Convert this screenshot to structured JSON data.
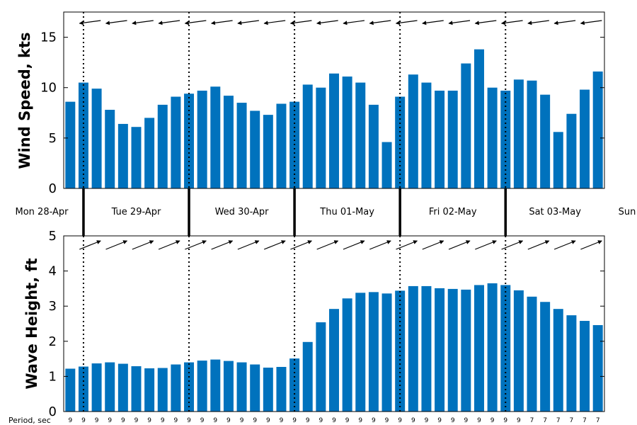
{
  "chart_data": [
    {
      "type": "bar",
      "ylabel": "Wind Speed, kts",
      "ylim": [
        0,
        17.5
      ],
      "yticks": [
        "0",
        "5",
        "10",
        "15"
      ],
      "grid": false,
      "bar_color": "#0072BD",
      "times": [
        "Mon 28-Apr 18:00",
        "Mon 28-Apr 21:00",
        "Tue 29-Apr 00:00",
        "Tue 29-Apr 03:00",
        "Tue 29-Apr 06:00",
        "Tue 29-Apr 09:00",
        "Tue 29-Apr 12:00",
        "Tue 29-Apr 15:00",
        "Tue 29-Apr 18:00",
        "Tue 29-Apr 21:00",
        "Wed 30-Apr 00:00",
        "Wed 30-Apr 03:00",
        "Wed 30-Apr 06:00",
        "Wed 30-Apr 09:00",
        "Wed 30-Apr 12:00",
        "Wed 30-Apr 15:00",
        "Wed 30-Apr 18:00",
        "Wed 30-Apr 21:00",
        "Thu 01-May 00:00",
        "Thu 01-May 03:00",
        "Thu 01-May 06:00",
        "Thu 01-May 09:00",
        "Thu 01-May 12:00",
        "Thu 01-May 15:00",
        "Thu 01-May 18:00",
        "Thu 01-May 21:00",
        "Fri 02-May 00:00",
        "Fri 02-May 03:00",
        "Fri 02-May 06:00",
        "Fri 02-May 09:00",
        "Fri 02-May 12:00",
        "Fri 02-May 15:00",
        "Fri 02-May 18:00",
        "Fri 02-May 21:00",
        "Sat 03-May 00:00",
        "Sat 03-May 03:00",
        "Sat 03-May 06:00",
        "Sat 03-May 09:00",
        "Sat 03-May 12:00",
        "Sat 03-May 15:00",
        "Sat 03-May 18:00"
      ],
      "values": [
        8.6,
        10.5,
        9.9,
        7.8,
        6.4,
        6.1,
        7.0,
        8.3,
        9.1,
        9.4,
        9.7,
        10.1,
        9.2,
        8.5,
        7.7,
        7.3,
        8.4,
        8.6,
        10.3,
        10.0,
        11.4,
        11.1,
        10.5,
        8.3,
        4.6,
        9.1,
        11.3,
        10.5,
        9.7,
        9.7,
        12.4,
        13.8,
        10.0,
        9.7,
        10.8,
        10.7,
        9.3,
        5.6,
        7.4,
        9.8,
        11.6
      ],
      "direction_arrows": "wind direction arrows above bars, pointing left (westward, slightly down-left)"
    },
    {
      "type": "bar",
      "ylabel": "Wave Height, ft",
      "ylim": [
        0,
        5
      ],
      "yticks": [
        "0",
        "1",
        "2",
        "3",
        "4",
        "5"
      ],
      "grid": false,
      "bar_color": "#0072BD",
      "times": [
        "Mon 28-Apr 18:00",
        "Mon 28-Apr 21:00",
        "Tue 29-Apr 00:00",
        "Tue 29-Apr 03:00",
        "Tue 29-Apr 06:00",
        "Tue 29-Apr 09:00",
        "Tue 29-Apr 12:00",
        "Tue 29-Apr 15:00",
        "Tue 29-Apr 18:00",
        "Tue 29-Apr 21:00",
        "Wed 30-Apr 00:00",
        "Wed 30-Apr 03:00",
        "Wed 30-Apr 06:00",
        "Wed 30-Apr 09:00",
        "Wed 30-Apr 12:00",
        "Wed 30-Apr 15:00",
        "Wed 30-Apr 18:00",
        "Wed 30-Apr 21:00",
        "Thu 01-May 00:00",
        "Thu 01-May 03:00",
        "Thu 01-May 06:00",
        "Thu 01-May 09:00",
        "Thu 01-May 12:00",
        "Thu 01-May 15:00",
        "Thu 01-May 18:00",
        "Thu 01-May 21:00",
        "Fri 02-May 00:00",
        "Fri 02-May 03:00",
        "Fri 02-May 06:00",
        "Fri 02-May 09:00",
        "Fri 02-May 12:00",
        "Fri 02-May 15:00",
        "Fri 02-May 18:00",
        "Fri 02-May 21:00",
        "Sat 03-May 00:00",
        "Sat 03-May 03:00",
        "Sat 03-May 06:00",
        "Sat 03-May 09:00",
        "Sat 03-May 12:00",
        "Sat 03-May 15:00",
        "Sat 03-May 18:00"
      ],
      "values": [
        1.22,
        1.28,
        1.37,
        1.4,
        1.36,
        1.29,
        1.23,
        1.24,
        1.34,
        1.4,
        1.45,
        1.48,
        1.44,
        1.4,
        1.34,
        1.25,
        1.27,
        1.51,
        1.98,
        2.54,
        2.92,
        3.22,
        3.38,
        3.4,
        3.36,
        3.44,
        3.57,
        3.57,
        3.51,
        3.49,
        3.47,
        3.6,
        3.65,
        3.6,
        3.45,
        3.27,
        3.12,
        2.92,
        2.74,
        2.58,
        2.46
      ],
      "period_label": "Period, sec",
      "periods": [
        "9",
        "9",
        "9",
        "9",
        "9",
        "9",
        "9",
        "9",
        "9",
        "9",
        "9",
        "9",
        "9",
        "9",
        "9",
        "9",
        "9",
        "9",
        "9",
        "9",
        "9",
        "9",
        "9",
        "9",
        "9",
        "9",
        "9",
        "9",
        "9",
        "9",
        "9",
        "9",
        "9",
        "9",
        "9",
        "7",
        "7",
        "7",
        "7",
        "7",
        "7"
      ],
      "direction_arrows": "wave direction arrows above bars, pointing up-right (northeast)"
    }
  ],
  "day_labels": [
    "Mon 28-Apr",
    "Tue 29-Apr",
    "Wed 30-Apr",
    "Thu 01-May",
    "Fri 02-May",
    "Sat 03-May",
    "Sun"
  ]
}
